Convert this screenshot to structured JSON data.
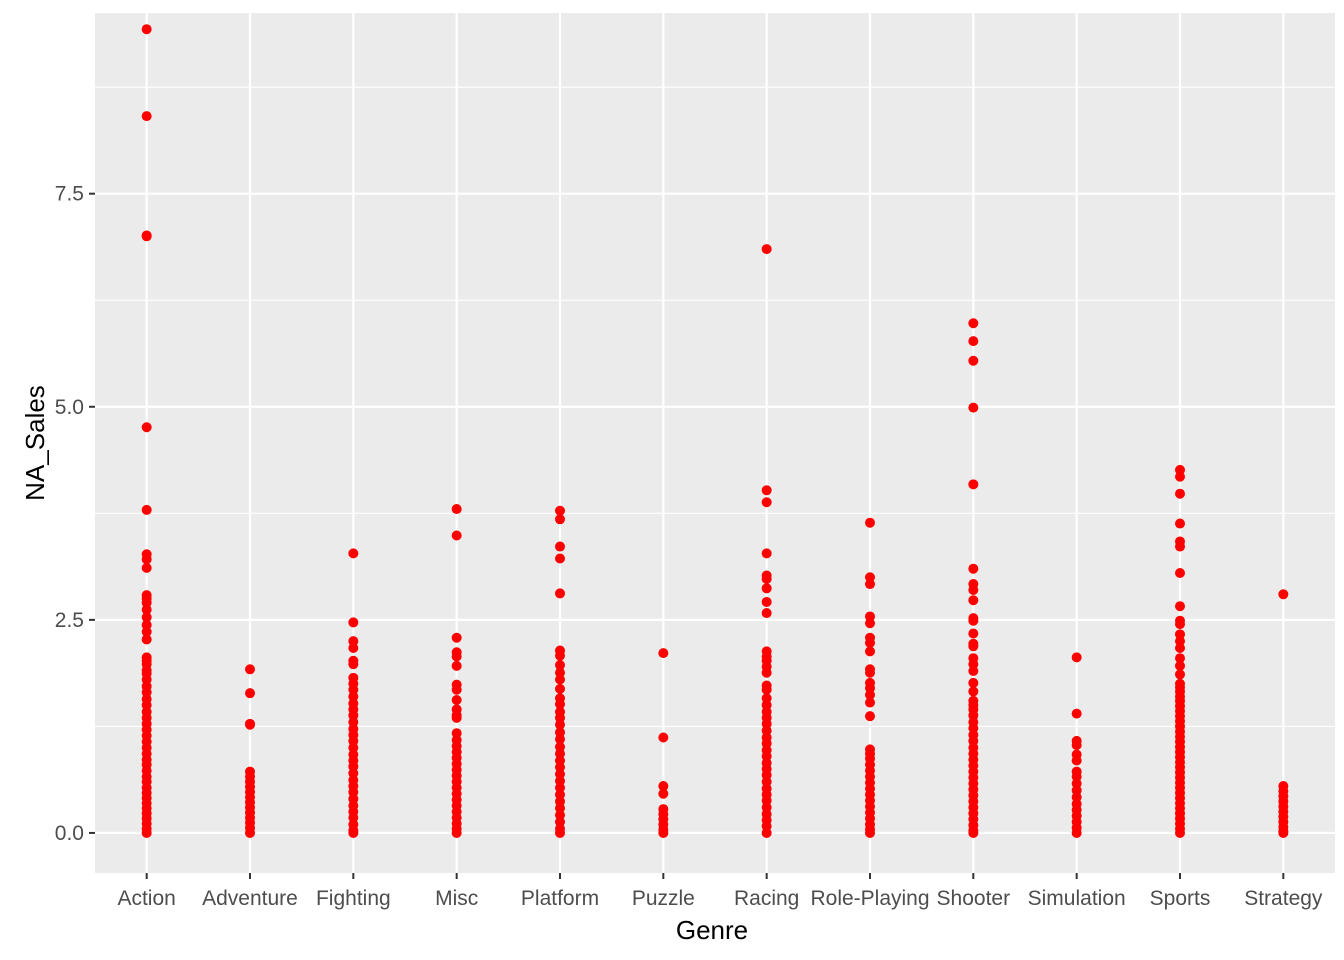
{
  "chart_data": {
    "type": "scatter",
    "xlabel": "Genre",
    "ylabel": "NA_Sales",
    "categories": [
      "Action",
      "Adventure",
      "Fighting",
      "Misc",
      "Platform",
      "Puzzle",
      "Racing",
      "Role-Playing",
      "Shooter",
      "Simulation",
      "Sports",
      "Strategy"
    ],
    "ylim": [
      -0.47,
      9.62
    ],
    "yticks": [
      0.0,
      2.5,
      5.0,
      7.5
    ],
    "ytick_labels": [
      "0.0",
      "2.5",
      "5.0",
      "7.5"
    ],
    "grid": true,
    "legend": "none",
    "colors": {
      "point": "#ff0000",
      "panel": "#ebebeb",
      "grid": "#ffffff",
      "background": "#ffffff"
    },
    "points": {
      "Action": [
        9.43,
        8.41,
        7.01,
        7.0,
        4.76,
        3.79,
        3.27,
        3.21,
        3.11,
        2.79,
        2.75,
        2.7,
        2.62,
        2.53,
        2.44,
        2.36,
        2.27,
        2.06,
        2.02,
        1.98,
        1.91,
        1.87,
        1.8,
        1.72,
        1.65,
        1.57,
        1.5,
        1.42,
        1.35,
        1.28,
        1.21,
        1.14,
        1.07,
        1.0,
        0.93,
        0.86,
        0.8,
        0.73,
        0.66,
        0.6,
        0.53,
        0.47,
        0.41,
        0.35,
        0.29,
        0.23,
        0.17,
        0.11,
        0.05,
        0.0
      ],
      "Adventure": [
        1.92,
        1.64,
        1.28,
        1.27,
        0.72,
        0.66,
        0.6,
        0.54,
        0.48,
        0.42,
        0.36,
        0.3,
        0.24,
        0.18,
        0.12,
        0.06,
        0.0
      ],
      "Fighting": [
        3.28,
        2.47,
        2.25,
        2.17,
        2.02,
        1.98,
        1.82,
        1.75,
        1.68,
        1.6,
        1.52,
        1.45,
        1.38,
        1.3,
        1.22,
        1.15,
        1.08,
        1.0,
        0.92,
        0.85,
        0.78,
        0.7,
        0.62,
        0.55,
        0.48,
        0.4,
        0.32,
        0.25,
        0.18,
        0.1,
        0.03,
        0.0
      ],
      "Misc": [
        3.8,
        3.49,
        2.29,
        2.12,
        2.07,
        1.96,
        1.74,
        1.68,
        1.56,
        1.45,
        1.38,
        1.35,
        1.17,
        1.09,
        1.02,
        0.95,
        0.88,
        0.81,
        0.74,
        0.67,
        0.6,
        0.53,
        0.46,
        0.39,
        0.32,
        0.25,
        0.18,
        0.11,
        0.05,
        0.0
      ],
      "Platform": [
        3.78,
        3.68,
        3.36,
        3.22,
        2.81,
        2.14,
        2.08,
        1.97,
        1.88,
        1.8,
        1.69,
        1.58,
        1.51,
        1.42,
        1.35,
        1.27,
        1.18,
        1.1,
        1.01,
        0.93,
        0.85,
        0.77,
        0.69,
        0.61,
        0.53,
        0.45,
        0.37,
        0.29,
        0.21,
        0.13,
        0.05,
        0.0
      ],
      "Puzzle": [
        2.11,
        1.12,
        0.55,
        0.46,
        0.28,
        0.22,
        0.16,
        0.1,
        0.04,
        0.0
      ],
      "Racing": [
        6.85,
        4.02,
        3.88,
        3.28,
        3.02,
        2.98,
        2.87,
        2.71,
        2.58,
        2.13,
        2.07,
        2.02,
        1.95,
        1.88,
        1.73,
        1.68,
        1.58,
        1.5,
        1.42,
        1.35,
        1.28,
        1.2,
        1.12,
        1.05,
        0.97,
        0.9,
        0.82,
        0.75,
        0.68,
        0.6,
        0.52,
        0.45,
        0.38,
        0.3,
        0.22,
        0.15,
        0.08,
        0.0
      ],
      "Role-Playing": [
        3.64,
        3.0,
        2.92,
        2.54,
        2.46,
        2.29,
        2.23,
        2.13,
        1.92,
        1.88,
        1.76,
        1.7,
        1.62,
        1.53,
        1.37,
        0.98,
        0.93,
        0.87,
        0.8,
        0.73,
        0.66,
        0.59,
        0.52,
        0.45,
        0.38,
        0.31,
        0.24,
        0.17,
        0.1,
        0.04,
        0.0
      ],
      "Shooter": [
        5.98,
        5.77,
        5.54,
        4.99,
        4.09,
        3.1,
        2.92,
        2.85,
        2.73,
        2.52,
        2.49,
        2.34,
        2.22,
        2.19,
        2.05,
        1.98,
        1.9,
        1.76,
        1.66,
        1.55,
        1.5,
        1.45,
        1.38,
        1.3,
        1.23,
        1.15,
        1.08,
        1.0,
        0.93,
        0.86,
        0.79,
        0.72,
        0.65,
        0.58,
        0.51,
        0.44,
        0.37,
        0.3,
        0.23,
        0.16,
        0.09,
        0.03,
        0.0
      ],
      "Simulation": [
        2.06,
        1.4,
        1.08,
        1.03,
        0.92,
        0.85,
        0.72,
        0.66,
        0.58,
        0.5,
        0.42,
        0.34,
        0.27,
        0.2,
        0.13,
        0.06,
        0.0
      ],
      "Sports": [
        4.26,
        4.18,
        3.98,
        3.63,
        3.42,
        3.36,
        3.05,
        2.66,
        2.49,
        2.45,
        2.33,
        2.25,
        2.17,
        2.05,
        1.96,
        1.86,
        1.75,
        1.71,
        1.66,
        1.6,
        1.55,
        1.49,
        1.43,
        1.37,
        1.31,
        1.25,
        1.19,
        1.13,
        1.07,
        1.01,
        0.95,
        0.89,
        0.83,
        0.77,
        0.71,
        0.65,
        0.59,
        0.53,
        0.47,
        0.41,
        0.35,
        0.29,
        0.23,
        0.17,
        0.11,
        0.05,
        0.0
      ],
      "Strategy": [
        2.8,
        0.55,
        0.49,
        0.43,
        0.37,
        0.31,
        0.25,
        0.19,
        0.13,
        0.07,
        0.02,
        0.0
      ]
    }
  }
}
